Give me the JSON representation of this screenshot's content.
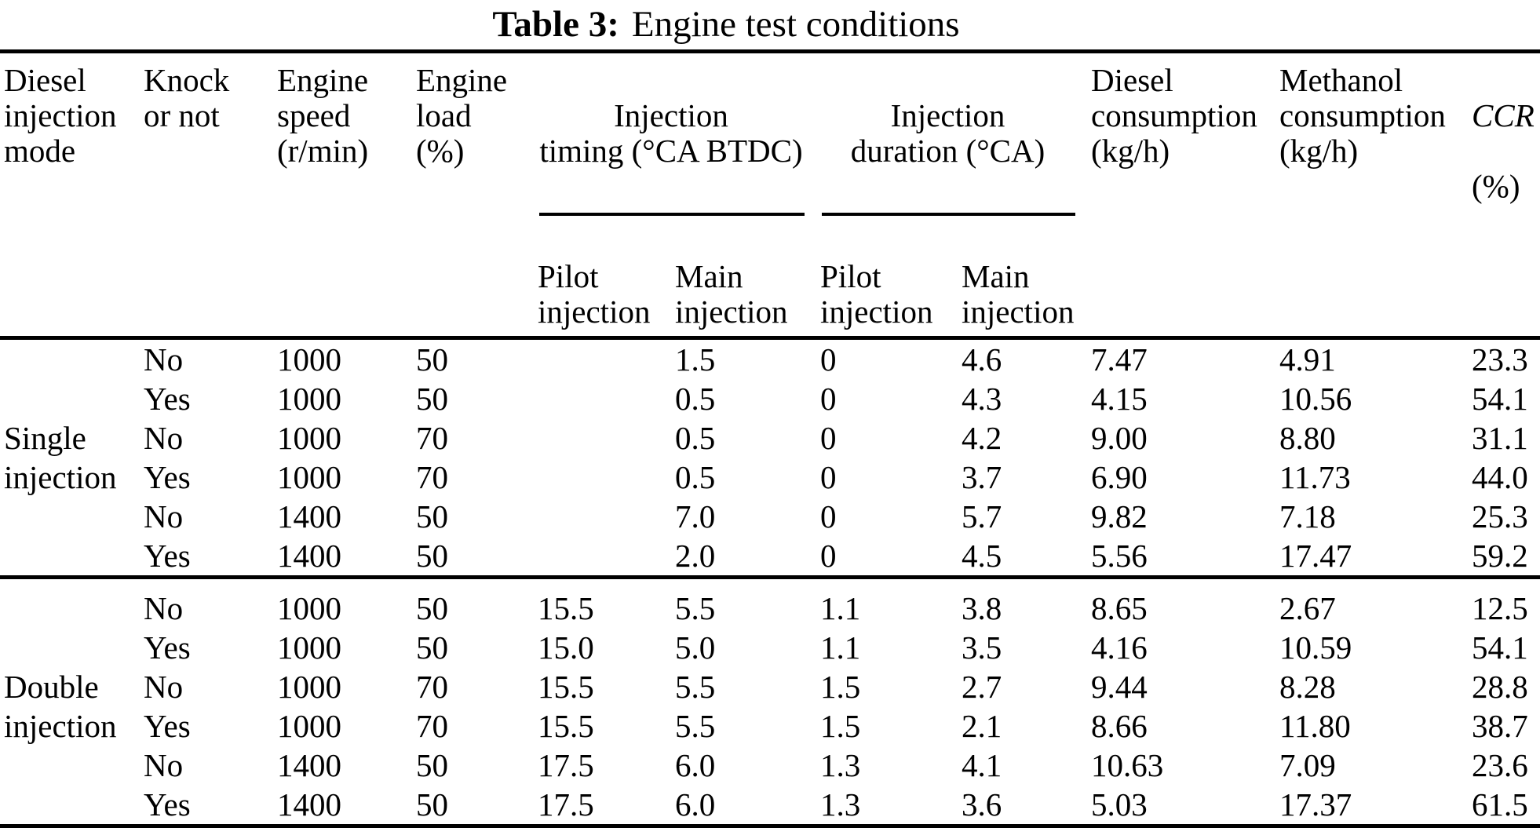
{
  "title": {
    "label": "Table 3:",
    "text": "Engine test conditions"
  },
  "table": {
    "headers": {
      "mode": "Diesel\ninjection\nmode",
      "knock": "Knock\nor not",
      "speed": "Engine\nspeed\n(r/min)",
      "load": "Engine\nload\n(%)",
      "timing_group": "Injection\ntiming (°CA BTDC)",
      "duration_group": "Injection\nduration (°CA)",
      "timing_pilot": "Pilot\ninjection",
      "timing_main": "Main\ninjection",
      "duration_pilot": "Pilot\ninjection",
      "duration_main": "Main\ninjection",
      "diesel": "Diesel\nconsumption\n(kg/h)",
      "methanol": "Methanol\nconsumption\n(kg/h)",
      "ccr_name": "CCR",
      "ccr_unit": "(%)"
    },
    "groups": [
      {
        "mode": "Single\ninjection",
        "rows": [
          [
            "No",
            "1000",
            "50",
            "",
            "1.5",
            "0",
            "4.6",
            "7.47",
            "4.91",
            "23.3"
          ],
          [
            "Yes",
            "1000",
            "50",
            "",
            "0.5",
            "0",
            "4.3",
            "4.15",
            "10.56",
            "54.1"
          ],
          [
            "No",
            "1000",
            "70",
            "",
            "0.5",
            "0",
            "4.2",
            "9.00",
            "8.80",
            "31.1"
          ],
          [
            "Yes",
            "1000",
            "70",
            "",
            "0.5",
            "0",
            "3.7",
            "6.90",
            "11.73",
            "44.0"
          ],
          [
            "No",
            "1400",
            "50",
            "",
            "7.0",
            "0",
            "5.7",
            "9.82",
            "7.18",
            "25.3"
          ],
          [
            "Yes",
            "1400",
            "50",
            "",
            "2.0",
            "0",
            "4.5",
            "5.56",
            "17.47",
            "59.2"
          ]
        ]
      },
      {
        "mode": "Double\ninjection",
        "rows": [
          [
            "No",
            "1000",
            "50",
            "15.5",
            "5.5",
            "1.1",
            "3.8",
            "8.65",
            "2.67",
            "12.5"
          ],
          [
            "Yes",
            "1000",
            "50",
            "15.0",
            "5.0",
            "1.1",
            "3.5",
            "4.16",
            "10.59",
            "54.1"
          ],
          [
            "No",
            "1000",
            "70",
            "15.5",
            "5.5",
            "1.5",
            "2.7",
            "9.44",
            "8.28",
            "28.8"
          ],
          [
            "Yes",
            "1000",
            "70",
            "15.5",
            "5.5",
            "1.5",
            "2.1",
            "8.66",
            "11.80",
            "38.7"
          ],
          [
            "No",
            "1400",
            "50",
            "17.5",
            "6.0",
            "1.3",
            "4.1",
            "10.63",
            "7.09",
            "23.6"
          ],
          [
            "Yes",
            "1400",
            "50",
            "17.5",
            "6.0",
            "1.3",
            "3.6",
            "5.03",
            "17.37",
            "61.5"
          ]
        ]
      }
    ]
  }
}
